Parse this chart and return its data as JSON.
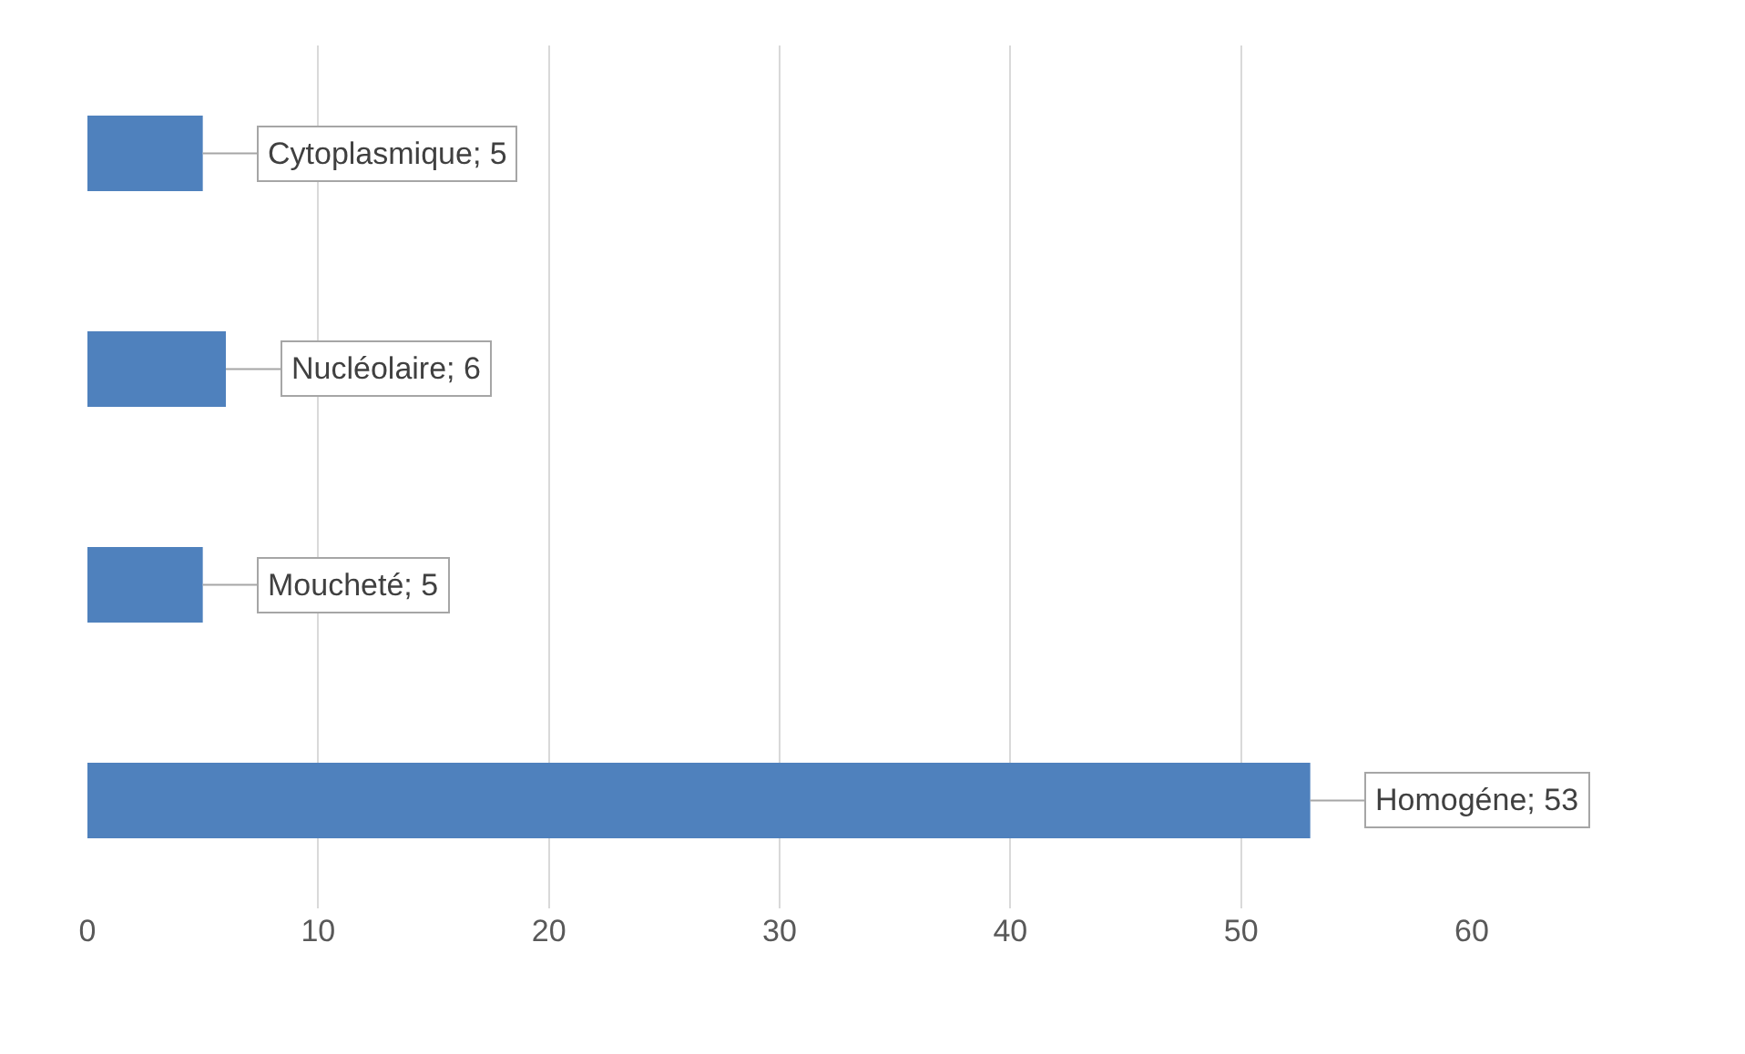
{
  "chart_data": {
    "type": "bar",
    "orientation": "horizontal",
    "categories": [
      null,
      null,
      null,
      null
    ],
    "values": [
      5,
      6,
      5,
      53
    ],
    "value_labels": [
      "Cytoplasmique; 5",
      "Nucléolaire; 6",
      "Moucheté; 5",
      "Homogéne; 53"
    ],
    "color": "#4f81bd",
    "xlim": [
      0,
      60
    ],
    "xticks": [
      0,
      10,
      20,
      30,
      40,
      50,
      60
    ],
    "grid": "x",
    "tick_labels": "x"
  }
}
